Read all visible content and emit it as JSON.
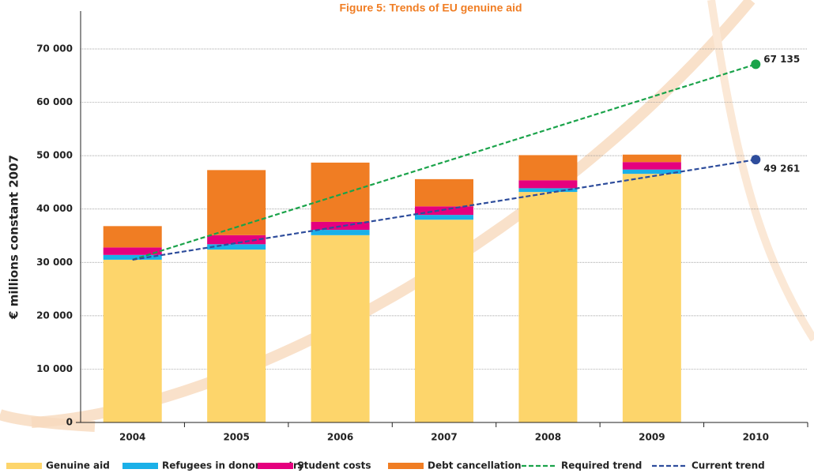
{
  "chart_data": {
    "type": "bar-line",
    "title": "Figure 5: Trends of EU genuine aid",
    "y_label": "€ millions constant 2007",
    "categories": [
      "2004",
      "2005",
      "2006",
      "2007",
      "2008",
      "2009",
      "2010"
    ],
    "series": [
      {
        "name": "Genuine aid",
        "type": "bar",
        "color": "#fdd56b",
        "values": [
          30500,
          32400,
          35100,
          38000,
          43200,
          46600,
          null
        ]
      },
      {
        "name": "Refugees in donor country",
        "type": "bar",
        "color": "#1ab0e8",
        "values": [
          900,
          1000,
          1000,
          900,
          700,
          800,
          null
        ]
      },
      {
        "name": "Student costs",
        "type": "bar",
        "color": "#e5007e",
        "values": [
          1400,
          1700,
          1500,
          1600,
          1500,
          1400,
          null
        ]
      },
      {
        "name": "Debt cancellation",
        "type": "bar",
        "color": "#f07d23",
        "values": [
          4000,
          12200,
          11100,
          5100,
          4700,
          1400,
          null
        ]
      },
      {
        "name": "Required trend",
        "type": "line",
        "color": "#1aa34a",
        "values": [
          30500,
          36606,
          42712,
          48817,
          54923,
          61029,
          67135
        ],
        "value_labels": [
          null,
          null,
          null,
          null,
          null,
          null,
          "67 135"
        ]
      },
      {
        "name": "Current trend",
        "type": "line",
        "color": "#2e4d9c",
        "values": [
          30500,
          33627,
          36754,
          39880,
          43007,
          46134,
          49261
        ],
        "value_labels": [
          null,
          null,
          null,
          null,
          null,
          null,
          "49 261"
        ]
      }
    ],
    "ylim": [
      0,
      70000
    ],
    "yticks": [
      0,
      {
        "value": 10000,
        "label": "10 000"
      },
      {
        "value": 20000,
        "label": "20 000"
      },
      {
        "value": 30000,
        "label": "30 000"
      },
      {
        "value": 40000,
        "label": "40 000"
      },
      {
        "value": 50000,
        "label": "50 000"
      },
      {
        "value": 60000,
        "label": "60 000"
      },
      {
        "value": 70000,
        "label": "70 000"
      }
    ],
    "grid": true
  }
}
